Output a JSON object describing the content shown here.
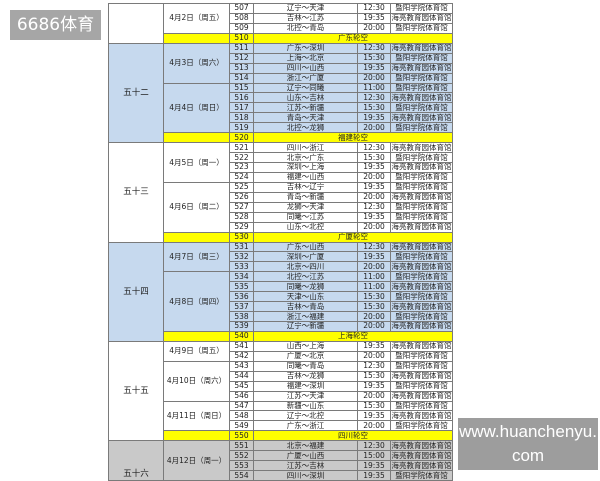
{
  "watermarks": {
    "top_left": "6686体育",
    "bottom_right": "www.huanchenyu.com"
  },
  "colors": {
    "blue": "#c6d9ee",
    "white": "#ffffff",
    "gray": "#c9c9c9",
    "bye": "#ffff00"
  },
  "rounds": [
    {
      "label": "",
      "color": "white",
      "dates": [
        {
          "date": "4月2日（周五）",
          "games": [
            {
              "no": "507",
              "match": "辽宁～天津",
              "time": "12:30",
              "venue": "暨阳学院体育馆"
            },
            {
              "no": "508",
              "match": "吉林～江苏",
              "time": "19:35",
              "venue": "海亮教育园体育馆"
            },
            {
              "no": "509",
              "match": "北控～青岛",
              "time": "20:00",
              "venue": "暨阳学院体育馆"
            }
          ]
        }
      ],
      "bye": {
        "no": "510",
        "text": "广东轮空"
      }
    },
    {
      "label": "五十二",
      "color": "blue",
      "dates": [
        {
          "date": "4月3日（周六）",
          "games": [
            {
              "no": "511",
              "match": "广东～深圳",
              "time": "12:30",
              "venue": "海亮教育园体育馆"
            },
            {
              "no": "512",
              "match": "上海～北京",
              "time": "15:30",
              "venue": "暨阳学院体育馆"
            },
            {
              "no": "513",
              "match": "四川～山西",
              "time": "19:35",
              "venue": "海亮教育园体育馆"
            },
            {
              "no": "514",
              "match": "浙江～广厦",
              "time": "20:00",
              "venue": "暨阳学院体育馆"
            }
          ]
        },
        {
          "date": "4月4日（周日）",
          "games": [
            {
              "no": "515",
              "match": "辽宁～同曦",
              "time": "11:00",
              "venue": "暨阳学院体育馆"
            },
            {
              "no": "516",
              "match": "山东～吉林",
              "time": "12:30",
              "venue": "海亮教育园体育馆"
            },
            {
              "no": "517",
              "match": "江苏～新疆",
              "time": "15:30",
              "venue": "暨阳学院体育馆"
            },
            {
              "no": "518",
              "match": "青岛～天津",
              "time": "19:35",
              "venue": "海亮教育园体育馆"
            },
            {
              "no": "519",
              "match": "北控～龙狮",
              "time": "20:00",
              "venue": "暨阳学院体育馆"
            }
          ]
        }
      ],
      "bye": {
        "no": "520",
        "text": "福建轮空"
      }
    },
    {
      "label": "五十三",
      "color": "white",
      "dates": [
        {
          "date": "4月5日（周一）",
          "games": [
            {
              "no": "521",
              "match": "四川～浙江",
              "time": "12:30",
              "venue": "海亮教育园体育馆"
            },
            {
              "no": "522",
              "match": "北京～广东",
              "time": "15:30",
              "venue": "暨阳学院体育馆"
            },
            {
              "no": "523",
              "match": "深圳～上海",
              "time": "19:35",
              "venue": "海亮教育园体育馆"
            },
            {
              "no": "524",
              "match": "福建～山西",
              "time": "20:00",
              "venue": "暨阳学院体育馆"
            }
          ]
        },
        {
          "date": "4月6日（周二）",
          "games": [
            {
              "no": "525",
              "match": "吉林～辽宁",
              "time": "19:35",
              "venue": "暨阳学院体育馆"
            },
            {
              "no": "526",
              "match": "青岛～新疆",
              "time": "20:00",
              "venue": "海亮教育园体育馆"
            },
            {
              "no": "527",
              "match": "龙狮～天津",
              "time": "12:30",
              "venue": "暨阳学院体育馆"
            },
            {
              "no": "528",
              "match": "同曦～江苏",
              "time": "19:35",
              "venue": "暨阳学院体育馆"
            },
            {
              "no": "529",
              "match": "山东～北控",
              "time": "20:00",
              "venue": "海亮教育园体育馆"
            }
          ]
        }
      ],
      "bye": {
        "no": "530",
        "text": "广厦轮空"
      }
    },
    {
      "label": "五十四",
      "color": "blue",
      "dates": [
        {
          "date": "4月7日（周三）",
          "games": [
            {
              "no": "531",
              "match": "广东～山西",
              "time": "12:30",
              "venue": "海亮教育园体育馆"
            },
            {
              "no": "532",
              "match": "深圳～广厦",
              "time": "19:35",
              "venue": "暨阳学院体育馆"
            },
            {
              "no": "533",
              "match": "北京～四川",
              "time": "20:00",
              "venue": "海亮教育园体育馆"
            }
          ]
        },
        {
          "date": "4月8日（周四）",
          "games": [
            {
              "no": "534",
              "match": "北控～江苏",
              "time": "11:00",
              "venue": "暨阳学院体育馆"
            },
            {
              "no": "535",
              "match": "同曦～龙狮",
              "time": "11:00",
              "venue": "海亮教育园体育馆"
            },
            {
              "no": "536",
              "match": "天津～山东",
              "time": "15:30",
              "venue": "暨阳学院体育馆"
            },
            {
              "no": "537",
              "match": "吉林～青岛",
              "time": "15:30",
              "venue": "海亮教育园体育馆"
            },
            {
              "no": "538",
              "match": "浙江～福建",
              "time": "20:00",
              "venue": "暨阳学院体育馆"
            },
            {
              "no": "539",
              "match": "辽宁～新疆",
              "time": "20:00",
              "venue": "海亮教育园体育馆"
            }
          ]
        }
      ],
      "bye": {
        "no": "540",
        "text": "上海轮空"
      }
    },
    {
      "label": "五十五",
      "color": "white",
      "dates": [
        {
          "date": "4月9日（周五）",
          "games": [
            {
              "no": "541",
              "match": "山西～上海",
              "time": "19:35",
              "venue": "海亮教育园体育馆"
            },
            {
              "no": "542",
              "match": "广厦～北京",
              "time": "20:00",
              "venue": "暨阳学院体育馆"
            }
          ]
        },
        {
          "date": "4月10日（周六）",
          "games": [
            {
              "no": "543",
              "match": "同曦～青岛",
              "time": "12:30",
              "venue": "暨阳学院体育馆"
            },
            {
              "no": "544",
              "match": "吉林～龙狮",
              "time": "15:30",
              "venue": "海亮教育园体育馆"
            },
            {
              "no": "545",
              "match": "福建～深圳",
              "time": "19:35",
              "venue": "暨阳学院体育馆"
            },
            {
              "no": "546",
              "match": "江苏～天津",
              "time": "20:00",
              "venue": "海亮教育园体育馆"
            }
          ]
        },
        {
          "date": "4月11日（周日）",
          "games": [
            {
              "no": "547",
              "match": "新疆～山东",
              "time": "15:30",
              "venue": "暨阳学院体育馆"
            },
            {
              "no": "548",
              "match": "辽宁～北控",
              "time": "19:35",
              "venue": "海亮教育园体育馆"
            },
            {
              "no": "549",
              "match": "广东～浙江",
              "time": "20:00",
              "venue": "暨阳学院体育馆"
            }
          ]
        }
      ],
      "bye": {
        "no": "550",
        "text": "四川轮空"
      }
    },
    {
      "label": "五十六",
      "color": "gray",
      "dates": [
        {
          "date": "4月12日（周一）",
          "games": [
            {
              "no": "551",
              "match": "北京～福建",
              "time": "12:30",
              "venue": "海亮教育园体育馆"
            },
            {
              "no": "552",
              "match": "广厦～山西",
              "time": "15:00",
              "venue": "海亮教育园体育馆"
            },
            {
              "no": "553",
              "match": "江苏～吉林",
              "time": "19:35",
              "venue": "海亮教育园体育馆"
            },
            {
              "no": "554",
              "match": "四川～深圳",
              "time": "19:35",
              "venue": "暨阳学院体育馆"
            }
          ]
        }
      ]
    }
  ]
}
